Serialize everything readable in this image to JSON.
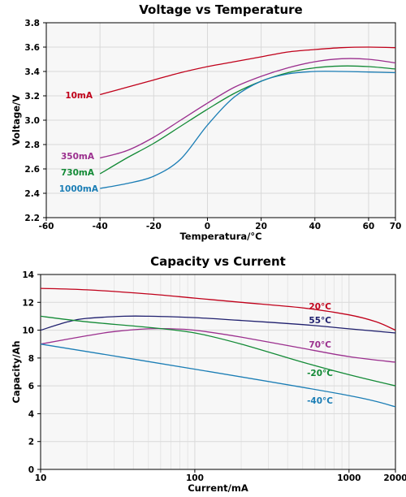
{
  "chart_data": [
    {
      "type": "line",
      "title": "Voltage vs Temperature",
      "xlabel": "Temperatura/°C",
      "ylabel": "Voltage/V",
      "xlim": [
        -60,
        70
      ],
      "ylim": [
        2.2,
        3.8
      ],
      "x_ticks": [
        -60,
        -40,
        -20,
        0,
        20,
        40,
        60,
        70
      ],
      "x_tick_labels": [
        "-60",
        "-40",
        "-20",
        "0",
        "20",
        "40",
        "60",
        "70"
      ],
      "y_ticks": [
        2.2,
        2.4,
        2.6,
        2.8,
        3.0,
        3.2,
        3.4,
        3.6,
        3.8
      ],
      "y_tick_labels": [
        "2.2",
        "2.4",
        "2.6",
        "2.8",
        "3.0",
        "3.2",
        "3.4",
        "3.6",
        "3.8"
      ],
      "grid": true,
      "series": [
        {
          "name": "10mA",
          "color": "#c0001a",
          "x": [
            -40,
            -30,
            -20,
            -10,
            0,
            10,
            20,
            30,
            40,
            50,
            60,
            70
          ],
          "y": [
            3.21,
            3.27,
            3.33,
            3.39,
            3.44,
            3.48,
            3.52,
            3.56,
            3.58,
            3.595,
            3.6,
            3.595
          ]
        },
        {
          "name": "350mA",
          "color": "#9b2f8e",
          "x": [
            -40,
            -30,
            -20,
            -10,
            0,
            10,
            20,
            30,
            40,
            50,
            60,
            70
          ],
          "y": [
            2.69,
            2.75,
            2.86,
            3.0,
            3.14,
            3.27,
            3.36,
            3.43,
            3.48,
            3.505,
            3.5,
            3.47
          ]
        },
        {
          "name": "730mA",
          "color": "#138a36",
          "x": [
            -40,
            -30,
            -20,
            -10,
            0,
            10,
            20,
            30,
            40,
            50,
            60,
            70
          ],
          "y": [
            2.56,
            2.69,
            2.81,
            2.95,
            3.09,
            3.22,
            3.32,
            3.39,
            3.43,
            3.445,
            3.44,
            3.42
          ]
        },
        {
          "name": "1000mA",
          "color": "#1a7db5",
          "x": [
            -40,
            -30,
            -20,
            -10,
            0,
            10,
            20,
            30,
            40,
            50,
            60,
            70
          ],
          "y": [
            2.44,
            2.48,
            2.54,
            2.68,
            2.96,
            3.19,
            3.32,
            3.38,
            3.4,
            3.4,
            3.395,
            3.39
          ]
        }
      ]
    },
    {
      "type": "line",
      "title": "Capacity vs Current",
      "xlabel": "Current/mA",
      "ylabel": "Capacity/Ah",
      "xscale": "log",
      "xlim": [
        10,
        2000
      ],
      "ylim": [
        0,
        14
      ],
      "x_ticks": [
        10,
        100,
        1000,
        2000
      ],
      "x_tick_labels": [
        "10",
        "100",
        "1000",
        "2000"
      ],
      "y_ticks": [
        0,
        2,
        4,
        6,
        8,
        10,
        12,
        14
      ],
      "y_tick_labels": [
        "0",
        "2",
        "4",
        "6",
        "8",
        "10",
        "12",
        "14"
      ],
      "grid": true,
      "series": [
        {
          "name": "20°C",
          "color": "#c0001a",
          "x": [
            10,
            20,
            50,
            100,
            200,
            500,
            1000,
            1500,
            2000
          ],
          "y": [
            13.0,
            12.9,
            12.6,
            12.3,
            12.0,
            11.6,
            11.1,
            10.6,
            10.0
          ]
        },
        {
          "name": "55°C",
          "color": "#1f1f6e",
          "x": [
            10,
            15,
            20,
            35,
            50,
            100,
            200,
            500,
            1000,
            2000
          ],
          "y": [
            10.0,
            10.6,
            10.85,
            11.0,
            11.0,
            10.9,
            10.7,
            10.4,
            10.1,
            9.8
          ]
        },
        {
          "name": "70°C",
          "color": "#9b2f8e",
          "x": [
            10,
            20,
            30,
            50,
            70,
            100,
            200,
            500,
            1000,
            2000
          ],
          "y": [
            9.0,
            9.6,
            9.9,
            10.1,
            10.1,
            10.0,
            9.5,
            8.7,
            8.1,
            7.7
          ]
        },
        {
          "name": "-20°C",
          "color": "#138a36",
          "x": [
            10,
            20,
            50,
            100,
            200,
            500,
            1000,
            2000
          ],
          "y": [
            11.0,
            10.6,
            10.2,
            9.8,
            9.0,
            7.7,
            6.8,
            6.0
          ]
        },
        {
          "name": "-40°C",
          "color": "#1a7db5",
          "x": [
            10,
            100,
            1000,
            2000
          ],
          "y": [
            9.0,
            7.2,
            5.3,
            4.5
          ]
        }
      ]
    }
  ]
}
